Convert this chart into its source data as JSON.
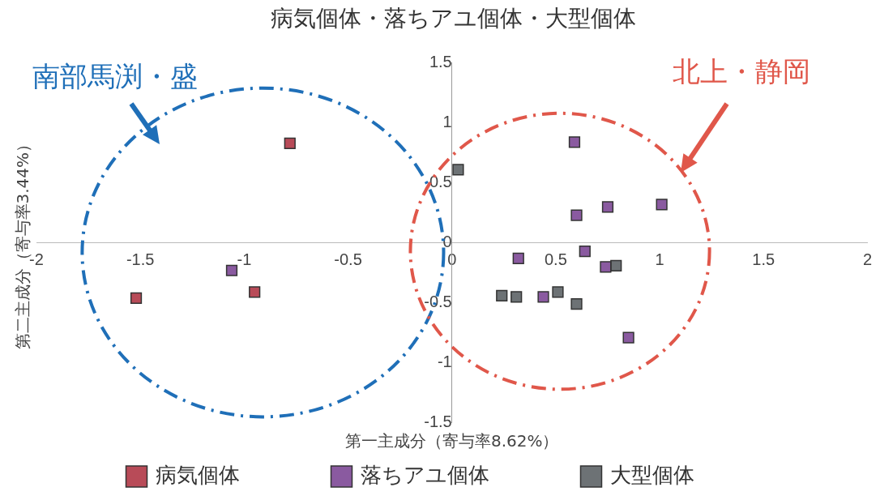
{
  "chart_data": {
    "type": "scatter",
    "title": "病気個体・落ちアユ個体・大型個体",
    "xlabel": "第一主成分（寄与率8.62%）",
    "ylabel": "第二主成分（寄与率3.44%）",
    "xlim": [
      -2,
      2
    ],
    "xticks": [
      -2,
      -1.5,
      -1,
      -0.5,
      0,
      0.5,
      1,
      1.5,
      2
    ],
    "ylim": [
      -1.5,
      1.5
    ],
    "yticks": [
      -1.5,
      -1,
      -0.5,
      0,
      0.5,
      1,
      1.5
    ],
    "grid": false,
    "legend": "bottom",
    "marker": "square",
    "annotations": [
      "南部馬渕・盛",
      "北上・静岡"
    ],
    "series": [
      {
        "name": "病気個体",
        "color": "#b84b58",
        "x": [
          -0.78,
          -1.52,
          -0.95
        ],
        "values": [
          0.83,
          -0.46,
          -0.41
        ]
      },
      {
        "name": "落ちアユ個体",
        "color": "#8a5aa0",
        "x": [
          -1.06,
          0.59,
          0.6,
          0.75,
          1.01,
          0.32,
          0.64,
          0.74,
          0.44,
          0.85
        ],
        "values": [
          -0.23,
          0.84,
          0.23,
          0.3,
          0.32,
          -0.13,
          -0.07,
          -0.2,
          -0.45,
          -0.79
        ]
      },
      {
        "name": "大型個体",
        "color": "#6d7275",
        "x": [
          0.03,
          0.24,
          0.31,
          0.51,
          0.6,
          0.79
        ],
        "values": [
          0.61,
          -0.44,
          -0.45,
          -0.41,
          -0.51,
          -0.19
        ]
      }
    ]
  }
}
